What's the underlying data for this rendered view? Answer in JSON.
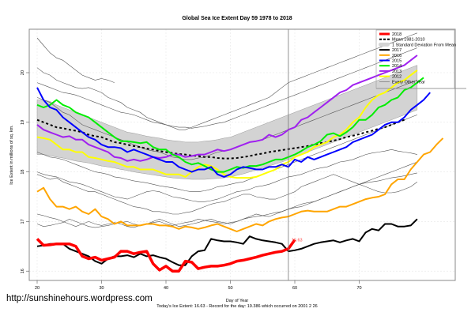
{
  "chart_data": {
    "type": "line",
    "title": "Global Sea Ice Extent Day 59 1978 to 2018",
    "xlabel": "Day of Year",
    "ylabel": "Ice Extent in millions of sq. km.",
    "xlim": [
      19,
      80
    ],
    "ylim": [
      15.8,
      21.1
    ],
    "xticks": [
      20,
      30,
      40,
      50,
      60,
      70
    ],
    "yticks": [
      16,
      17,
      18,
      19,
      20
    ],
    "grid": true,
    "legend_position": "top-right",
    "current_day_marker": 59,
    "annotation": {
      "day": 59,
      "value": 16.63,
      "text": "16.63",
      "color": "#ff0000"
    },
    "footer": "Today's Ice Extent: 16.63 - Record for the day: 19.386 which occurred on 2001 2 26",
    "legend": [
      {
        "label": "2018",
        "color": "#ff0000",
        "style": "thick"
      },
      {
        "label": "Mean 1981-2010",
        "color": "#000000",
        "style": "dashed"
      },
      {
        "label": "1 Standard Deviation From Mean",
        "color": "#cccccc",
        "style": "band"
      },
      {
        "label": "2017",
        "color": "#000000",
        "style": "solid"
      },
      {
        "label": "2016",
        "color": "#ffa500",
        "style": "solid"
      },
      {
        "label": "2015",
        "color": "#0000ff",
        "style": "solid"
      },
      {
        "label": "2014",
        "color": "#00ee00",
        "style": "solid"
      },
      {
        "label": "2013",
        "color": "#a020f0",
        "style": "solid"
      },
      {
        "label": "2012",
        "color": "#ffff00",
        "style": "solid"
      },
      {
        "label": "Every Other Year",
        "color": "#666666",
        "style": "thin"
      }
    ],
    "x_start": 20,
    "band": {
      "upper": [
        19.45,
        19.45,
        19.42,
        19.35,
        19.3,
        19.25,
        19.2,
        19.15,
        19.1,
        19.05,
        19.0,
        18.95,
        18.9,
        18.85,
        18.8,
        18.78,
        18.75,
        18.72,
        18.7,
        18.68,
        18.65,
        18.63,
        18.62,
        18.6,
        18.6,
        18.6,
        18.62,
        18.63,
        18.65,
        18.68,
        18.7,
        18.75,
        18.8,
        18.85,
        18.9,
        18.95,
        19.0,
        19.05,
        19.1,
        19.15,
        19.2,
        19.25,
        19.3,
        19.35,
        19.4,
        19.45,
        19.5,
        19.55,
        19.6,
        19.65,
        19.7,
        19.75,
        19.8,
        19.85,
        19.9,
        19.95,
        20.0,
        20.05,
        20.1,
        20.15
      ],
      "lower": [
        18.35,
        18.35,
        18.33,
        18.3,
        18.28,
        18.25,
        18.22,
        18.2,
        18.18,
        18.15,
        18.12,
        18.1,
        18.08,
        18.05,
        18.03,
        18.0,
        17.98,
        17.96,
        17.94,
        17.92,
        17.9,
        17.88,
        17.87,
        17.86,
        17.85,
        17.85,
        17.85,
        17.86,
        17.87,
        17.88,
        17.9,
        17.93,
        17.96,
        18.0,
        18.04,
        18.08,
        18.12,
        18.16,
        18.2,
        18.25,
        18.3,
        18.35,
        18.4,
        18.45,
        18.5,
        18.55,
        18.6,
        18.65,
        18.7,
        18.75,
        18.8,
        18.85,
        18.9,
        18.95,
        19.0,
        19.05,
        19.1,
        19.15,
        19.2,
        19.25
      ]
    },
    "mean": [
      19.05,
      19.0,
      18.95,
      18.9,
      18.88,
      18.85,
      18.83,
      18.8,
      18.75,
      18.72,
      18.7,
      18.65,
      18.6,
      18.58,
      18.55,
      18.52,
      18.5,
      18.47,
      18.45,
      18.42,
      18.4,
      18.38,
      18.36,
      18.35,
      18.33,
      18.32,
      18.3,
      18.3,
      18.28,
      18.27,
      18.27,
      18.28,
      18.3,
      18.32,
      18.35,
      18.37,
      18.4,
      18.42,
      18.44,
      18.46,
      18.48,
      18.5,
      18.52,
      18.55,
      18.58,
      18.6,
      18.63,
      18.66,
      18.7,
      18.73,
      18.76,
      18.8,
      18.83,
      18.87,
      18.9,
      18.95,
      19.0,
      19.05
    ],
    "series": [
      {
        "name": "2018",
        "values": [
          16.65,
          16.52,
          16.53,
          16.55,
          16.55,
          16.55,
          16.5,
          16.3,
          16.25,
          16.28,
          16.22,
          16.25,
          16.28,
          16.4,
          16.4,
          16.35,
          16.38,
          16.4,
          16.15,
          16.02,
          16.1,
          16.0,
          16.0,
          16.2,
          16.18,
          16.05,
          16.08,
          16.1,
          16.1,
          16.12,
          16.15,
          16.2,
          16.22,
          16.25,
          16.28,
          16.32,
          16.35,
          16.38,
          16.4,
          16.45,
          16.63
        ]
      },
      {
        "name": "2017",
        "values": [
          16.5,
          16.52,
          16.55,
          16.55,
          16.55,
          16.45,
          16.4,
          16.35,
          16.3,
          16.2,
          16.15,
          16.25,
          16.3,
          16.3,
          16.32,
          16.28,
          16.35,
          16.3,
          16.32,
          16.28,
          16.25,
          16.18,
          16.12,
          16.12,
          16.3,
          16.4,
          16.42,
          16.65,
          16.62,
          16.6,
          16.6,
          16.58,
          16.55,
          16.7,
          16.65,
          16.62,
          16.6,
          16.58,
          16.55,
          16.4,
          16.42,
          16.45,
          16.5,
          16.55,
          16.58,
          16.6,
          16.62,
          16.58,
          16.62,
          16.65,
          16.6,
          16.78,
          16.85,
          16.82,
          16.95,
          16.95,
          16.9,
          16.9,
          16.92,
          17.05
        ]
      },
      {
        "name": "2016",
        "values": [
          17.6,
          17.68,
          17.45,
          17.3,
          17.3,
          17.25,
          17.3,
          17.2,
          17.15,
          17.25,
          17.1,
          17.05,
          16.95,
          17.0,
          16.92,
          16.92,
          16.92,
          16.95,
          16.95,
          16.92,
          16.92,
          16.9,
          16.85,
          16.9,
          16.88,
          16.85,
          16.88,
          16.92,
          16.95,
          16.9,
          16.85,
          16.8,
          16.85,
          16.9,
          16.95,
          16.92,
          17.0,
          17.05,
          17.08,
          17.1,
          17.15,
          17.2,
          17.22,
          17.2,
          17.2,
          17.2,
          17.25,
          17.3,
          17.3,
          17.35,
          17.4,
          17.45,
          17.48,
          17.5,
          17.55,
          17.75,
          17.85,
          17.85,
          18.05,
          18.2,
          18.35,
          18.4,
          18.55,
          18.68
        ]
      },
      {
        "name": "2015",
        "values": [
          19.7,
          19.45,
          19.3,
          19.25,
          19.1,
          19.0,
          18.9,
          18.8,
          18.7,
          18.65,
          18.55,
          18.5,
          18.5,
          18.48,
          18.4,
          18.45,
          18.4,
          18.35,
          18.3,
          18.25,
          18.2,
          18.2,
          18.1,
          18.05,
          18.0,
          18.05,
          18.05,
          18.1,
          17.95,
          17.9,
          17.95,
          18.05,
          18.1,
          18.08,
          18.05,
          18.05,
          18.1,
          18.1,
          18.15,
          18.1,
          18.25,
          18.2,
          18.3,
          18.25,
          18.3,
          18.35,
          18.4,
          18.45,
          18.5,
          18.6,
          18.65,
          18.7,
          18.75,
          18.85,
          18.95,
          19.0,
          19.0,
          19.1,
          19.25,
          19.35,
          19.45,
          19.6
        ]
      },
      {
        "name": "2014",
        "values": [
          19.35,
          19.3,
          19.35,
          19.45,
          19.35,
          19.3,
          19.2,
          19.15,
          19.1,
          19.0,
          18.9,
          18.8,
          18.7,
          18.62,
          18.62,
          18.6,
          18.58,
          18.6,
          18.5,
          18.45,
          18.45,
          18.35,
          18.3,
          18.2,
          18.15,
          18.18,
          18.12,
          18.05,
          18.0,
          18.0,
          18.05,
          18.1,
          18.08,
          18.12,
          18.12,
          18.15,
          18.2,
          18.25,
          18.25,
          18.3,
          18.35,
          18.42,
          18.5,
          18.55,
          18.62,
          18.75,
          18.78,
          18.72,
          18.8,
          18.9,
          19.05,
          19.05,
          19.15,
          19.3,
          19.35,
          19.45,
          19.5,
          19.65,
          19.7,
          19.8,
          19.9
        ]
      },
      {
        "name": "2013",
        "values": [
          18.95,
          18.85,
          18.8,
          18.75,
          18.7,
          18.72,
          18.65,
          18.65,
          18.55,
          18.5,
          18.45,
          18.4,
          18.3,
          18.28,
          18.22,
          18.25,
          18.22,
          18.25,
          18.3,
          18.28,
          18.3,
          18.35,
          18.35,
          18.3,
          18.32,
          18.35,
          18.35,
          18.4,
          18.45,
          18.42,
          18.45,
          18.5,
          18.55,
          18.6,
          18.62,
          18.65,
          18.75,
          18.7,
          18.75,
          18.85,
          18.9,
          19.05,
          19.1,
          19.2,
          19.3,
          19.4,
          19.5,
          19.6,
          19.65,
          19.75,
          19.8,
          19.85,
          19.9,
          19.95,
          20.0,
          20.05,
          20.1,
          20.15,
          20.25,
          20.35
        ]
      },
      {
        "name": "2012",
        "values": [
          18.7,
          18.68,
          18.65,
          18.55,
          18.45,
          18.45,
          18.4,
          18.4,
          18.3,
          18.28,
          18.25,
          18.22,
          18.2,
          18.15,
          18.1,
          18.1,
          18.05,
          18.05,
          18.05,
          18.0,
          17.95,
          17.95,
          17.95,
          17.9,
          18.0,
          18.1,
          18.15,
          18.12,
          18.05,
          17.95,
          17.9,
          17.88,
          17.88,
          17.88,
          17.9,
          17.95,
          18.0,
          18.05,
          18.15,
          18.2,
          18.3,
          18.35,
          18.4,
          18.5,
          18.55,
          18.6,
          18.7,
          18.75,
          18.85,
          19.0,
          19.1,
          19.3,
          19.45,
          19.55,
          19.6,
          19.7,
          19.8,
          19.85,
          19.95,
          20.05
        ]
      }
    ],
    "background_series": [
      [
        20.7,
        20.55,
        20.4,
        20.3,
        20.25,
        20.15,
        20.05,
        19.95,
        19.9,
        19.85,
        19.88,
        19.85,
        19.8
      ],
      [
        20.1,
        20.0,
        19.95,
        19.85,
        19.8,
        19.75,
        19.7,
        19.68,
        19.7,
        19.65,
        19.6,
        19.5,
        19.45,
        19.4,
        19.3,
        19.25,
        19.2,
        19.1,
        19.05,
        19.0,
        18.95,
        18.9,
        18.85,
        18.85,
        18.9,
        18.95,
        19.0,
        19.05,
        19.1,
        19.15,
        19.2,
        19.25,
        19.3,
        19.35,
        19.4,
        19.45,
        19.5,
        19.6,
        19.7,
        19.8,
        19.85,
        19.9,
        19.95,
        20.0,
        20.05,
        20.1,
        20.15,
        20.2,
        20.25,
        20.3,
        20.35,
        20.4,
        20.45,
        20.5,
        20.55,
        20.6,
        20.65,
        20.7,
        20.75,
        20.8
      ],
      [
        19.8,
        19.75,
        19.7,
        19.65,
        19.6,
        19.58,
        19.55,
        19.5,
        19.45,
        19.4,
        19.35,
        19.3,
        19.25,
        19.2,
        19.18,
        19.15,
        19.1,
        19.05,
        19.0,
        18.98,
        18.95,
        18.92,
        18.9,
        18.9,
        18.88,
        18.9,
        18.92,
        18.95,
        18.98,
        19.0,
        19.05,
        19.1,
        19.15,
        19.2,
        19.25,
        19.3,
        19.35,
        19.4,
        19.45,
        19.5,
        19.55,
        19.6,
        19.65,
        19.7,
        19.75,
        19.8,
        19.85,
        19.9,
        19.95,
        20.0,
        20.05,
        20.1,
        20.15,
        20.2,
        20.25,
        20.3,
        20.35,
        20.4,
        20.45,
        20.5
      ],
      [
        19.5,
        19.45,
        19.4,
        19.3,
        19.2,
        19.15,
        19.05,
        18.95,
        18.9,
        18.85,
        18.8,
        18.75,
        18.7,
        18.65,
        18.6,
        18.55,
        18.5,
        18.45,
        18.42,
        18.4,
        18.35,
        18.3,
        18.28,
        18.25,
        18.25,
        18.28,
        18.3,
        18.35,
        18.4,
        18.42,
        18.45,
        18.5,
        18.55,
        18.6,
        18.62,
        18.65,
        18.7,
        18.75,
        18.8,
        18.85,
        18.9,
        18.95,
        19.0,
        19.05,
        19.1,
        19.15,
        19.2,
        19.25,
        19.3,
        19.35,
        19.4,
        19.45,
        19.5,
        19.55,
        19.6,
        19.65,
        19.7,
        19.75,
        19.8,
        19.85
      ],
      [
        18.4,
        18.35,
        18.3,
        18.28,
        18.25,
        18.2,
        18.15,
        18.1,
        18.05,
        18.0,
        17.98,
        17.95,
        17.9,
        17.88,
        17.85,
        17.82,
        17.8,
        17.78,
        17.75,
        17.72,
        17.7,
        17.68,
        17.65,
        17.62,
        17.6,
        17.6,
        17.62,
        17.65,
        17.7,
        17.72,
        17.75,
        17.78,
        17.8,
        17.85,
        17.9,
        17.95,
        18.0,
        18.05,
        18.1,
        18.15,
        18.2,
        18.25,
        18.3,
        18.35,
        18.4,
        18.45,
        18.5,
        18.55,
        18.6,
        18.65,
        18.7,
        18.75,
        18.8,
        18.85,
        18.9,
        18.95,
        19.0,
        19.05,
        19.1,
        19.15
      ],
      [
        18.0,
        17.95,
        17.92,
        17.9,
        17.85,
        17.8,
        17.78,
        17.75,
        17.7,
        17.65,
        17.6,
        17.55,
        17.5,
        17.48,
        17.45,
        17.5,
        17.55,
        17.6,
        17.62,
        17.6,
        17.55,
        17.5,
        17.48,
        17.45,
        17.42,
        17.4,
        17.4,
        17.42,
        17.45,
        17.5,
        17.55,
        17.6,
        17.62,
        17.65,
        17.7,
        17.72,
        17.75,
        17.8,
        17.85,
        17.9,
        17.92,
        17.95,
        18.0,
        18.05,
        18.08,
        18.1,
        18.15,
        18.2,
        18.22,
        18.25,
        18.3,
        18.35,
        18.38,
        18.4,
        18.42,
        18.45,
        18.42,
        18.4,
        18.38,
        18.35
      ],
      [
        17.95,
        17.9,
        17.85,
        17.88,
        17.8,
        17.75,
        17.7,
        17.65,
        17.6,
        17.6,
        17.55,
        17.5,
        17.45,
        17.4,
        17.35,
        17.3,
        17.28,
        17.25,
        17.2,
        17.2,
        17.18,
        17.15,
        17.15,
        17.18,
        17.2,
        17.25,
        17.3,
        17.35,
        17.38,
        17.4,
        17.45,
        17.5,
        17.55,
        17.55,
        17.5,
        17.48,
        17.45,
        17.45,
        17.5,
        17.55,
        17.6,
        17.7,
        17.75,
        17.8,
        17.85,
        17.9,
        17.95,
        17.9,
        17.85,
        17.8,
        17.75,
        17.7,
        17.65,
        17.6,
        17.58,
        17.58,
        17.6,
        17.65,
        17.7,
        17.8
      ],
      [
        17.15,
        17.12,
        17.08,
        17.05,
        17.0,
        16.95,
        16.9,
        16.95,
        17.0,
        16.95,
        16.92,
        16.95,
        16.98,
        16.95,
        16.9,
        16.88,
        16.92,
        16.95,
        16.98,
        17.0,
        16.95,
        16.92,
        16.95,
        16.98,
        17.0,
        17.05,
        17.02,
        17.0,
        16.98,
        16.95,
        16.98,
        17.0,
        17.05,
        17.1,
        17.15,
        17.12,
        17.1,
        17.15,
        17.2,
        17.25,
        17.3,
        17.35,
        17.38,
        17.4,
        17.45,
        17.5,
        17.55,
        17.6,
        17.65,
        17.7,
        17.75,
        17.8,
        17.85,
        17.9,
        17.95,
        18.0,
        18.05,
        18.1,
        18.15,
        18.2
      ],
      [
        16.95,
        16.9,
        16.92,
        16.95,
        16.98,
        17.05,
        17.0,
        16.95,
        16.9,
        16.88,
        16.9,
        16.92,
        16.95,
        16.98,
        17.0,
        16.95,
        16.92,
        16.95,
        17.0,
        17.05,
        17.0,
        16.95,
        16.9,
        16.92,
        16.95,
        16.98,
        17.02,
        17.05,
        17.0,
        16.98,
        16.95,
        17.0,
        17.05,
        17.08,
        17.1,
        17.12,
        17.15,
        17.18,
        17.2,
        17.25,
        17.28,
        17.3,
        17.35,
        17.4,
        17.45,
        17.5,
        17.55,
        17.6,
        17.65,
        17.7,
        17.75,
        17.78,
        17.8,
        17.82,
        17.85,
        17.88,
        17.9,
        17.92,
        17.95,
        17.98
      ]
    ]
  },
  "watermark": "http://sunshinehours.wordpress.com"
}
